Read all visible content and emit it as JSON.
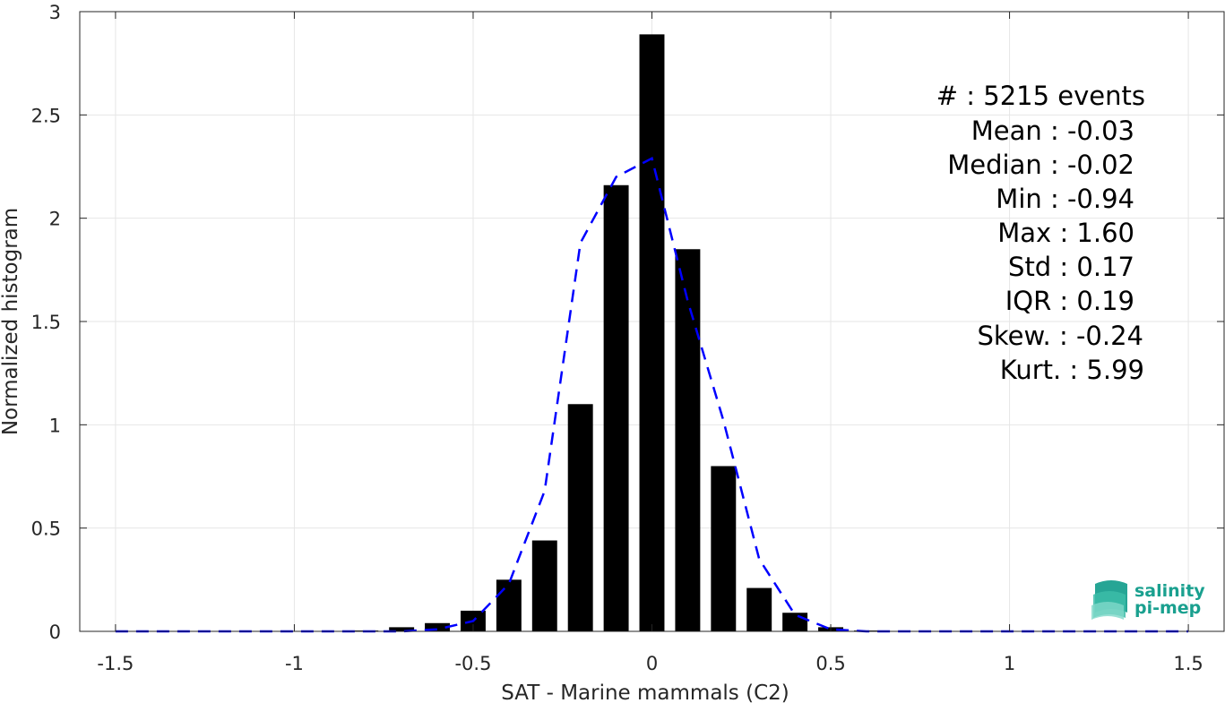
{
  "chart_data": {
    "type": "bar",
    "xlabel": "SAT - Marine mammals (C2)",
    "ylabel": "Normalized histogram",
    "xlim": [
      -1.6,
      1.6
    ],
    "ylim": [
      0,
      3
    ],
    "xticks": [
      -1.5,
      -1,
      -0.5,
      0,
      0.5,
      1,
      1.5
    ],
    "xtick_labels": [
      "-1.5",
      "-1",
      "-0.5",
      "0",
      "0.5",
      "1",
      "1.5"
    ],
    "yticks": [
      0,
      0.5,
      1,
      1.5,
      2,
      2.5,
      3
    ],
    "ytick_labels": [
      "0",
      "0.5",
      "1",
      "1.5",
      "2",
      "2.5",
      "3"
    ],
    "grid": true,
    "bar_width": 0.07,
    "bars": {
      "x": [
        -1.5,
        -1.4,
        -1.3,
        -1.2,
        -1.1,
        -1.0,
        -0.9,
        -0.8,
        -0.7,
        -0.6,
        -0.5,
        -0.4,
        -0.3,
        -0.2,
        -0.1,
        0.0,
        0.1,
        0.2,
        0.3,
        0.4,
        0.5,
        0.6,
        0.7,
        0.8,
        0.9,
        1.0,
        1.1,
        1.2,
        1.3,
        1.4,
        1.5
      ],
      "values": [
        0,
        0,
        0,
        0,
        0,
        0,
        0,
        0.004,
        0.02,
        0.04,
        0.1,
        0.25,
        0.44,
        1.1,
        2.16,
        2.89,
        1.85,
        0.8,
        0.21,
        0.09,
        0.02,
        0.004,
        0,
        0,
        0,
        0,
        0,
        0,
        0,
        0,
        0.002
      ],
      "color": "#000000"
    },
    "fit_line": {
      "style": "dashed",
      "color": "#0000ff",
      "x": [
        -1.5,
        -1.4,
        -1.3,
        -1.2,
        -1.1,
        -1.0,
        -0.9,
        -0.8,
        -0.7,
        -0.6,
        -0.5,
        -0.4,
        -0.3,
        -0.2,
        -0.1,
        0.0,
        0.1,
        0.2,
        0.3,
        0.4,
        0.5,
        0.6,
        0.7,
        0.8,
        0.9,
        1.0,
        1.1,
        1.2,
        1.3,
        1.4,
        1.5
      ],
      "y": [
        0,
        0,
        0,
        0,
        0,
        0,
        0,
        0,
        0,
        0.01,
        0.05,
        0.23,
        0.68,
        1.88,
        2.2,
        2.29,
        1.6,
        1.02,
        0.35,
        0.08,
        0.01,
        0,
        0,
        0,
        0,
        0,
        0,
        0,
        0,
        0,
        0
      ]
    }
  },
  "stats": {
    "count": "#  : 5215 events",
    "mean": "Mean : -0.03",
    "median": "Median : -0.02",
    "min": "Min : -0.94",
    "max": "Max : 1.60",
    "std": "Std : 0.17",
    "iqr": "IQR : 0.19",
    "skew": "Skew. : -0.24",
    "kurt": "Kurt. : 5.99"
  },
  "logo": {
    "line1": "salinity",
    "line2": "pi-mep",
    "color": "#1aa08f"
  }
}
